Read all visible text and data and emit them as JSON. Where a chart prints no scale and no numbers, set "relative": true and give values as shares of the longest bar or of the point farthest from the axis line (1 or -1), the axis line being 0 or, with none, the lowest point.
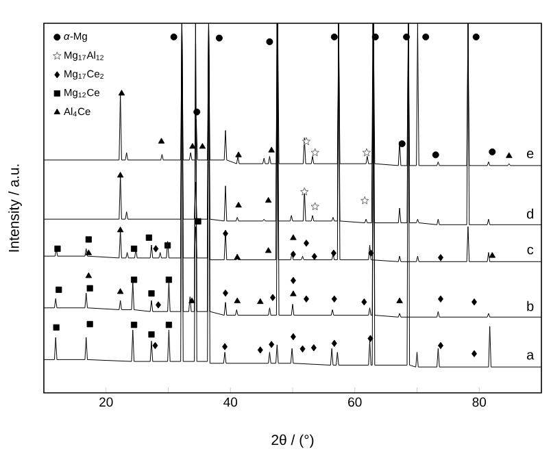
{
  "chart_data": {
    "type": "line",
    "relative": true,
    "xlabel": "2θ / (°)",
    "ylabel": "Intensity / a.u.",
    "xlim": [
      10,
      90
    ],
    "xticks": [
      20,
      {
        "value": 30,
        "label": null
      },
      40,
      {
        "value": 50,
        "label": null
      },
      60,
      {
        "value": 70,
        "label": null
      },
      80
    ],
    "tick_labels": "x",
    "legend": "top left",
    "line_style": "solid",
    "series": [
      {
        "name": "a",
        "color": "#000000",
        "x": [
          10,
          11.7,
          11.9,
          12.1,
          16.6,
          16.8,
          17.0,
          24.1,
          24.3,
          24.5,
          27.1,
          27.3,
          27.5,
          29.9,
          30.1,
          30.3,
          32.0,
          32.2,
          32.4,
          34.2,
          34.4,
          34.6,
          36.3,
          36.5,
          36.7,
          38.9,
          39.1,
          39.3,
          46.1,
          46.3,
          46.5,
          47.3,
          47.5,
          47.7,
          49.7,
          49.9,
          50.1,
          56.1,
          56.3,
          56.5,
          57.0,
          57.2,
          57.4,
          62.2,
          62.4,
          62.6,
          62.8,
          63.0,
          63.2,
          68.4,
          68.6,
          68.8,
          69.8,
          70.0,
          70.2,
          73.2,
          73.4,
          73.6,
          81.5,
          81.7,
          81.9,
          90
        ],
        "values": [
          0.09,
          0.09,
          0.15,
          0.09,
          0.09,
          0.15,
          0.09,
          0.085,
          0.17,
          0.085,
          0.085,
          0.14,
          0.085,
          0.085,
          0.17,
          0.085,
          0.085,
          1,
          0.085,
          0.085,
          1,
          0.085,
          0.085,
          1,
          0.08,
          0.08,
          0.11,
          0.08,
          0.08,
          0.11,
          0.08,
          0.08,
          0.13,
          0.08,
          0.08,
          0.12,
          0.08,
          0.075,
          0.12,
          0.075,
          0.075,
          0.11,
          0.075,
          0.075,
          0.14,
          0.075,
          0.075,
          1,
          0.075,
          0.075,
          1,
          0.075,
          0.07,
          0.11,
          0.07,
          0.07,
          0.12,
          0.07,
          0.07,
          0.18,
          0.07,
          0.07
        ]
      },
      {
        "name": "b",
        "color": "#000000",
        "x": [
          10,
          11.7,
          11.9,
          12.1,
          16.6,
          16.8,
          17.0,
          22.1,
          22.3,
          22.5,
          24.1,
          24.3,
          24.5,
          27.1,
          27.3,
          27.5,
          29.9,
          30.1,
          30.3,
          32.0,
          32.2,
          32.4,
          33.3,
          33.5,
          33.7,
          34.2,
          34.4,
          34.6,
          36.3,
          36.5,
          36.7,
          39.0,
          39.2,
          39.4,
          40.8,
          41.0,
          41.2,
          46.1,
          46.3,
          46.5,
          47.4,
          47.6,
          47.8,
          49.8,
          50.0,
          50.2,
          56.2,
          56.4,
          56.6,
          62.2,
          62.4,
          62.6,
          62.8,
          63.0,
          63.2,
          67.0,
          67.2,
          67.4,
          73.2,
          73.4,
          73.6,
          81.3,
          81.5,
          81.7,
          90
        ],
        "values": [
          0.23,
          0.23,
          0.255,
          0.23,
          0.23,
          0.27,
          0.23,
          0.225,
          0.25,
          0.225,
          0.225,
          0.3,
          0.225,
          0.22,
          0.25,
          0.22,
          0.22,
          0.3,
          0.22,
          0.22,
          1,
          0.22,
          0.22,
          0.26,
          0.22,
          0.22,
          1,
          0.22,
          0.22,
          1,
          0.22,
          0.21,
          0.245,
          0.21,
          0.21,
          0.225,
          0.21,
          0.21,
          0.23,
          0.21,
          0.21,
          1,
          0.21,
          0.21,
          0.24,
          0.21,
          0.21,
          0.225,
          0.21,
          0.21,
          0.23,
          0.21,
          0.21,
          1,
          0.21,
          0.205,
          0.215,
          0.205,
          0.205,
          0.22,
          0.205,
          0.205,
          0.215,
          0.205,
          0.205
        ]
      },
      {
        "name": "c",
        "color": "#000000",
        "x": [
          10,
          11.8,
          12.0,
          12.2,
          16.6,
          16.8,
          17.0,
          22.1,
          22.3,
          22.5,
          23.2,
          23.4,
          23.6,
          24.6,
          24.8,
          25.0,
          27.1,
          27.3,
          27.5,
          28.5,
          28.7,
          28.9,
          29.7,
          29.9,
          30.1,
          32.0,
          32.2,
          32.4,
          34.2,
          34.4,
          34.6,
          36.3,
          36.5,
          36.7,
          39.0,
          39.2,
          39.4,
          40.9,
          41.1,
          41.3,
          47.3,
          47.5,
          47.7,
          49.7,
          49.9,
          50.1,
          51.4,
          51.6,
          51.8,
          56.3,
          56.5,
          56.7,
          57.2,
          57.4,
          57.6,
          62.2,
          62.4,
          62.6,
          67.0,
          67.2,
          67.4,
          69.9,
          70.1,
          70.3,
          78.0,
          78.2,
          78.4,
          81.3,
          81.5,
          81.7,
          90
        ],
        "values": [
          0.37,
          0.37,
          0.39,
          0.37,
          0.37,
          0.39,
          0.37,
          0.365,
          0.44,
          0.365,
          0.365,
          0.38,
          0.365,
          0.365,
          0.39,
          0.365,
          0.365,
          0.4,
          0.365,
          0.365,
          0.38,
          0.365,
          0.365,
          0.41,
          0.365,
          0.365,
          1,
          0.365,
          0.365,
          0.45,
          0.365,
          0.365,
          1,
          0.36,
          0.36,
          0.44,
          0.36,
          0.36,
          0.375,
          0.36,
          0.36,
          1,
          0.36,
          0.36,
          0.38,
          0.36,
          0.36,
          0.37,
          0.36,
          0.36,
          0.375,
          0.36,
          0.36,
          1,
          0.36,
          0.36,
          0.4,
          0.36,
          0.355,
          0.37,
          0.355,
          0.355,
          0.37,
          0.355,
          0.355,
          0.45,
          0.355,
          0.355,
          0.38,
          0.355,
          0.355
        ]
      },
      {
        "name": "d",
        "color": "#000000",
        "x": [
          10,
          22.1,
          22.3,
          22.5,
          23.1,
          23.3,
          23.5,
          32.0,
          32.2,
          32.4,
          34.2,
          34.4,
          34.6,
          36.3,
          36.5,
          36.7,
          39.0,
          39.2,
          39.4,
          40.9,
          41.1,
          41.3,
          45.2,
          45.4,
          45.6,
          47.3,
          47.5,
          47.7,
          49.6,
          49.8,
          50.0,
          51.7,
          51.9,
          52.1,
          53.0,
          53.2,
          53.4,
          56.3,
          56.5,
          56.7,
          57.2,
          57.4,
          57.6,
          61.6,
          61.8,
          62.0,
          62.7,
          62.9,
          63.1,
          67.0,
          67.2,
          67.4,
          68.4,
          68.6,
          68.8,
          69.9,
          70.1,
          70.3,
          73.2,
          73.4,
          73.6,
          78.0,
          78.2,
          78.4,
          81.3,
          81.5,
          81.7,
          90
        ],
        "values": [
          0.47,
          0.47,
          0.59,
          0.47,
          0.47,
          0.49,
          0.47,
          0.47,
          1,
          0.47,
          0.47,
          0.57,
          0.47,
          0.47,
          1,
          0.47,
          0.465,
          0.56,
          0.465,
          0.465,
          0.475,
          0.465,
          0.465,
          0.47,
          0.465,
          0.465,
          1,
          0.465,
          0.465,
          0.48,
          0.465,
          0.465,
          0.55,
          0.465,
          0.465,
          0.48,
          0.465,
          0.465,
          0.475,
          0.465,
          0.465,
          1,
          0.465,
          0.46,
          0.47,
          0.46,
          0.46,
          1,
          0.46,
          0.46,
          0.5,
          0.46,
          0.46,
          1,
          0.46,
          0.46,
          0.47,
          0.46,
          0.455,
          0.47,
          0.455,
          0.455,
          1,
          0.455,
          0.455,
          0.47,
          0.455,
          0.455
        ]
      },
      {
        "name": "e",
        "color": "#000000",
        "x": [
          10,
          22.1,
          22.3,
          22.5,
          23.1,
          23.3,
          23.5,
          28.8,
          29.0,
          29.2,
          32.0,
          32.2,
          32.4,
          33.4,
          33.6,
          33.8,
          34.3,
          34.5,
          34.7,
          36.3,
          36.5,
          36.7,
          39.0,
          39.2,
          39.4,
          41.0,
          41.2,
          41.4,
          45.2,
          45.4,
          45.6,
          46.1,
          46.3,
          46.5,
          47.4,
          47.6,
          47.8,
          51.7,
          51.9,
          52.1,
          53.0,
          53.2,
          53.4,
          57.2,
          57.4,
          57.6,
          61.8,
          62.0,
          62.2,
          62.8,
          63.0,
          63.2,
          67.0,
          67.2,
          67.4,
          68.4,
          68.6,
          68.8,
          69.9,
          70.1,
          70.3,
          73.2,
          73.4,
          73.6,
          78.0,
          78.2,
          78.4,
          81.3,
          81.5,
          81.7,
          84.6,
          84.8,
          85.0,
          90
        ],
        "values": [
          0.63,
          0.63,
          0.81,
          0.63,
          0.63,
          0.65,
          0.63,
          0.63,
          0.645,
          0.63,
          0.63,
          1,
          0.63,
          0.63,
          0.65,
          0.63,
          0.63,
          0.74,
          0.63,
          0.63,
          1,
          0.63,
          0.63,
          0.71,
          0.63,
          0.62,
          0.64,
          0.62,
          0.62,
          0.635,
          0.62,
          0.62,
          0.64,
          0.62,
          0.62,
          1,
          0.62,
          0.62,
          0.69,
          0.62,
          0.62,
          0.64,
          0.62,
          0.62,
          1,
          0.62,
          0.62,
          0.64,
          0.62,
          0.62,
          1,
          0.62,
          0.615,
          0.68,
          0.615,
          0.615,
          1,
          0.615,
          0.615,
          1,
          0.615,
          0.615,
          0.625,
          0.615,
          0.615,
          1,
          0.615,
          0.615,
          0.625,
          0.615,
          0.615,
          0.62,
          0.615,
          0.615
        ]
      },
      {
        "name": "*α*-Mg",
        "type": "scatter",
        "marker": "circle",
        "color": "#000000",
        "x": [
          30.9,
          38.2,
          46.3,
          56.7,
          63.3,
          68.3,
          71.4,
          79.5,
          34.6,
          67.6,
          73.0,
          82.1
        ],
        "values": [
          0.963,
          0.96,
          0.95,
          0.963,
          0.963,
          0.963,
          0.963,
          0.963,
          0.76,
          0.674,
          0.644,
          0.652
        ]
      },
      {
        "name": "Mg$_{17}$Al$_{12}$",
        "type": "scatter",
        "marker": "star",
        "color": "#666666",
        "x": [
          52.2,
          53.6,
          61.9,
          51.9,
          53.6,
          61.6
        ],
        "values": [
          0.68,
          0.65,
          0.65,
          0.544,
          0.504,
          0.52
        ]
      },
      {
        "name": "Mg$_{17}$Ce$_{2}$",
        "type": "scatter",
        "marker": "diamond",
        "color": "#000000",
        "x": [
          28.0,
          39.2,
          50.1,
          52.2,
          53.5,
          56.6,
          62.6,
          73.8,
          28.4,
          39.2,
          46.8,
          50.1,
          52.2,
          56.7,
          61.5,
          73.8,
          79.2,
          27.9,
          39.1,
          44.8,
          46.6,
          50.1,
          51.6,
          53.4,
          56.7,
          62.5,
          73.8,
          79.2
        ],
        "values": [
          0.39,
          0.431,
          0.375,
          0.405,
          0.369,
          0.378,
          0.378,
          0.366,
          0.238,
          0.27,
          0.258,
          0.304,
          0.254,
          0.254,
          0.246,
          0.254,
          0.246,
          0.128,
          0.125,
          0.116,
          0.131,
          0.152,
          0.119,
          0.122,
          0.134,
          0.147,
          0.128,
          0.106
        ]
      },
      {
        "name": "Mg$_{12}$Ce",
        "type": "scatter",
        "marker": "square",
        "color": "#000000",
        "x": [
          12.2,
          17.2,
          24.5,
          26.9,
          29.9,
          34.8,
          12.4,
          17.4,
          24.5,
          27.3,
          30.1,
          12.0,
          17.4,
          24.5,
          27.3,
          30.1
        ],
        "values": [
          0.39,
          0.415,
          0.39,
          0.42,
          0.399,
          0.464,
          0.279,
          0.283,
          0.306,
          0.269,
          0.306,
          0.177,
          0.186,
          0.184,
          0.158,
          0.184
        ]
      },
      {
        "name": "Al$_{4}$Ce",
        "type": "scatter",
        "marker": "triangle",
        "color": "#000000",
        "x": [
          22.5,
          28.9,
          33.9,
          35.5,
          41.3,
          46.6,
          84.8,
          22.3,
          41.3,
          46.1,
          22.3,
          17.2,
          41.1,
          46.1,
          82.1,
          50.1,
          17.2,
          22.3,
          33.8,
          41.1,
          44.8,
          50.1,
          67.2
        ],
        "values": [
          0.81,
          0.68,
          0.666,
          0.666,
          0.643,
          0.656,
          0.641,
          0.588,
          0.507,
          0.52,
          0.44,
          0.378,
          0.366,
          0.384,
          0.371,
          0.419,
          0.316,
          0.273,
          0.248,
          0.248,
          0.246,
          0.267,
          0.248
        ]
      }
    ]
  }
}
